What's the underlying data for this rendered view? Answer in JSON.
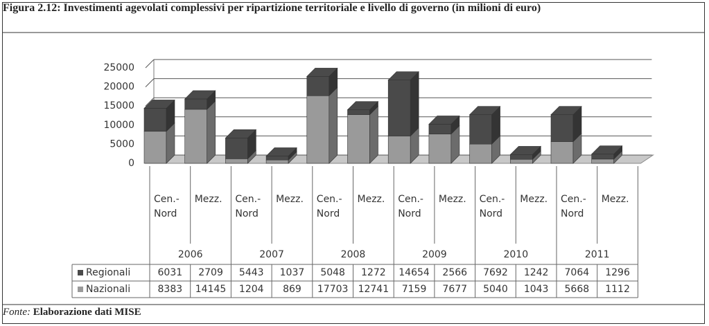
{
  "chart_data": {
    "type": "bar3d_stacked",
    "title": "Figura 2.12: Investimenti agevolati complessivi per ripartizione territoriale e livello di governo (in milioni di euro)",
    "categories": [
      "Cen.- Nord",
      "Mezz.",
      "Cen.- Nord",
      "Mezz.",
      "Cen.- Nord",
      "Mezz.",
      "Cen.- Nord",
      "Mezz.",
      "Cen.- Nord",
      "Mezz.",
      "Cen.- Nord",
      "Mezz."
    ],
    "groups": [
      "2006",
      "2007",
      "2008",
      "2009",
      "2010",
      "2011"
    ],
    "series": [
      {
        "name": "Regionali",
        "color": "#4a4a4a",
        "values": [
          6031,
          2709,
          5443,
          1037,
          5048,
          1272,
          14654,
          2566,
          7692,
          1242,
          7064,
          1296
        ]
      },
      {
        "name": "Nazionali",
        "color": "#9a9a9a",
        "values": [
          8383,
          14145,
          1204,
          869,
          17703,
          12741,
          7159,
          7677,
          5040,
          1043,
          5668,
          1112
        ]
      }
    ],
    "ylim": [
      0,
      25000
    ],
    "yticks": [
      0,
      5000,
      10000,
      15000,
      20000,
      25000
    ],
    "grid": true,
    "source_label": "Fonte:",
    "source": "Elaborazione dati MISE"
  }
}
